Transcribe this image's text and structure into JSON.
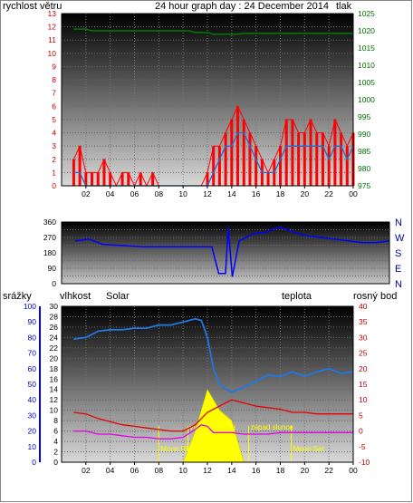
{
  "header": {
    "title": "24 hour graph day : 24 December 2014",
    "wind_label": "rychlost větru",
    "pressure_label": "tlak",
    "rain_label": "srážky",
    "humidity_label": "vlhkost",
    "solar_label": "Solar",
    "temp_label": "teplota",
    "dew_label": "rosný bod"
  },
  "colors": {
    "wind": "#ff0000",
    "gust": "#1e6fd0",
    "pressure": "#007a00",
    "winddir": "#0000ff",
    "humidity": "#1e78e6",
    "temperature": "#e60000",
    "dewpoint": "#e600e6",
    "solar": "#ffff00",
    "title": "#0000a0",
    "rain_axis": "#0000ff",
    "solar_label": "#d08000"
  },
  "time_ticks": [
    "02",
    "04",
    "06",
    "08",
    "10",
    "12",
    "14",
    "16",
    "18",
    "20",
    "22",
    "00"
  ],
  "direction_labels": [
    "N",
    "W",
    "S",
    "E",
    "N"
  ],
  "sun_labels": {
    "sunrise": "východ slunce",
    "sunset": "západ slunce",
    "moonrise": "Moon Rise",
    "moonset": "Moon Set"
  },
  "chart_data": [
    {
      "type": "line",
      "title": "24 hour graph day : 24 December 2014",
      "x": [
        1,
        1.5,
        2,
        2.5,
        3,
        3.5,
        4,
        4.5,
        5,
        5.5,
        6,
        6.5,
        7,
        7.5,
        8,
        8.5,
        9,
        9.5,
        10,
        10.5,
        11,
        11.5,
        12,
        12.5,
        13,
        13.5,
        14,
        14.5,
        15,
        15.5,
        16,
        16.5,
        17,
        17.5,
        18,
        18.5,
        19,
        19.5,
        20,
        20.5,
        21,
        21.5,
        22,
        22.5,
        23,
        23.5,
        24
      ],
      "x_tick_labels": [
        "02",
        "04",
        "06",
        "08",
        "10",
        "12",
        "14",
        "16",
        "18",
        "20",
        "22",
        "00"
      ],
      "series": [
        {
          "name": "rychlost větru",
          "axis": "left",
          "values": [
            2,
            3,
            1,
            1,
            1,
            2,
            1,
            0,
            1,
            1,
            0,
            1,
            0,
            1,
            0,
            0,
            0,
            0,
            0,
            0,
            0,
            0,
            1,
            3,
            3,
            4,
            5,
            6,
            5,
            4,
            3,
            2,
            1,
            2,
            3,
            5,
            5,
            4,
            4,
            5,
            4,
            4,
            3,
            5,
            4,
            3,
            4
          ]
        },
        {
          "name": "gust",
          "axis": "left",
          "values": [
            1,
            1,
            0,
            0,
            0,
            0,
            0,
            0,
            0,
            0,
            0,
            0,
            0,
            0,
            0,
            0,
            0,
            0,
            0,
            0,
            0,
            0,
            0,
            1,
            2,
            3,
            3,
            4,
            4,
            3,
            2,
            1,
            1,
            1,
            2,
            3,
            3,
            3,
            3,
            3,
            3,
            3,
            2,
            3,
            3,
            2,
            3
          ]
        },
        {
          "name": "tlak",
          "axis": "right",
          "values": [
            1020.5,
            1020.5,
            1020.5,
            1020,
            1020,
            1020,
            1020,
            1020,
            1020,
            1020,
            1020,
            1020,
            1020,
            1020,
            1020,
            1020,
            1020,
            1020,
            1020,
            1020,
            1019.5,
            1019.5,
            1019.5,
            1019,
            1019,
            1019,
            1019,
            1019,
            1019.3,
            1019.3,
            1019.3,
            1019.3,
            1019.3,
            1019.3,
            1019.3,
            1019.3,
            1019.3,
            1019.3,
            1019.3,
            1019.3,
            1019.3,
            1019.3,
            1019.3,
            1019.3,
            1019.3,
            1019.3,
            1019.3
          ]
        }
      ],
      "ylim_left": [
        0,
        13
      ],
      "ylim_right": [
        975,
        1025
      ],
      "yticks_left": [
        0,
        1,
        2,
        3,
        4,
        5,
        6,
        7,
        8,
        9,
        10,
        11,
        12,
        13
      ],
      "yticks_right": [
        975,
        980,
        985,
        990,
        995,
        1000,
        1005,
        1010,
        1015,
        1020,
        1025
      ],
      "grid": true
    },
    {
      "type": "line",
      "x": [
        1,
        2,
        3,
        4,
        5,
        6,
        7,
        8,
        9,
        10,
        11,
        11.5,
        12,
        12.2,
        12.5,
        13,
        14,
        15,
        15.5,
        16,
        17,
        18,
        19,
        20,
        21,
        22,
        23,
        24
      ],
      "series": [
        {
          "name": "wind direction",
          "values": [
            250,
            260,
            230,
            225,
            220,
            215,
            215,
            215,
            215,
            215,
            215,
            60,
            60,
            330,
            40,
            250,
            290,
            300,
            320,
            330,
            300,
            280,
            270,
            260,
            250,
            240,
            240,
            250
          ]
        }
      ],
      "ylim": [
        0,
        360
      ],
      "yticks": [
        0,
        45,
        90,
        135,
        180,
        225,
        270,
        315,
        360
      ],
      "right_labels": [
        "N",
        "W",
        "S",
        "E",
        "N"
      ]
    },
    {
      "type": "line",
      "x": [
        1,
        2,
        3,
        4,
        5,
        6,
        7,
        8,
        9,
        10,
        11,
        11.5,
        12,
        12.5,
        13,
        13.5,
        14,
        15,
        16,
        17,
        18,
        19,
        20,
        21,
        22,
        23,
        24
      ],
      "series": [
        {
          "name": "vlhkost",
          "axis": "humidity",
          "values": [
            79,
            80,
            84,
            85,
            85,
            86,
            86,
            88,
            88,
            90,
            92,
            91,
            80,
            60,
            50,
            47,
            45,
            48,
            52,
            56,
            55,
            58,
            55,
            58,
            60,
            57,
            58
          ]
        },
        {
          "name": "teplota",
          "axis": "right",
          "values": [
            6,
            5.5,
            4,
            3,
            2,
            1.5,
            1,
            0.5,
            0,
            0,
            2,
            4,
            6,
            7,
            8,
            9,
            10,
            9,
            8,
            7.5,
            7,
            6,
            6,
            5.5,
            5.5,
            5.5,
            5.5
          ]
        },
        {
          "name": "rosný bod",
          "axis": "right",
          "values": [
            0,
            0,
            -1,
            -1,
            -1.5,
            -2,
            -2,
            -2.5,
            -2.5,
            -2,
            0.5,
            2,
            1.5,
            -0.5,
            -0.5,
            -0.5,
            -0.5,
            -1,
            -1,
            -1,
            -0.5,
            -0.5,
            -0.5,
            -0.5,
            -0.5,
            -0.5,
            -0.5
          ]
        },
        {
          "name": "Solar",
          "axis": "solar",
          "values": [
            0,
            0,
            0,
            0,
            0,
            0,
            0,
            0,
            0,
            0,
            6,
            10,
            14,
            12,
            10,
            9,
            8,
            0,
            0,
            0,
            0,
            0,
            0,
            0,
            0,
            0,
            0
          ]
        }
      ],
      "ylim_rain": [
        0,
        100
      ],
      "ylim_humidity": [
        0,
        30
      ],
      "ylim_right": [
        -10,
        40
      ],
      "yticks_rain": [
        0,
        10,
        20,
        30,
        40,
        50,
        60,
        70,
        80,
        90,
        100
      ],
      "yticks_humidity": [
        0,
        2,
        4,
        6,
        8,
        10,
        12,
        14,
        16,
        18,
        20,
        22,
        24,
        26,
        28,
        30
      ],
      "yticks_right": [
        -10,
        -5,
        0,
        5,
        10,
        15,
        20,
        25,
        30,
        35,
        40
      ]
    }
  ]
}
